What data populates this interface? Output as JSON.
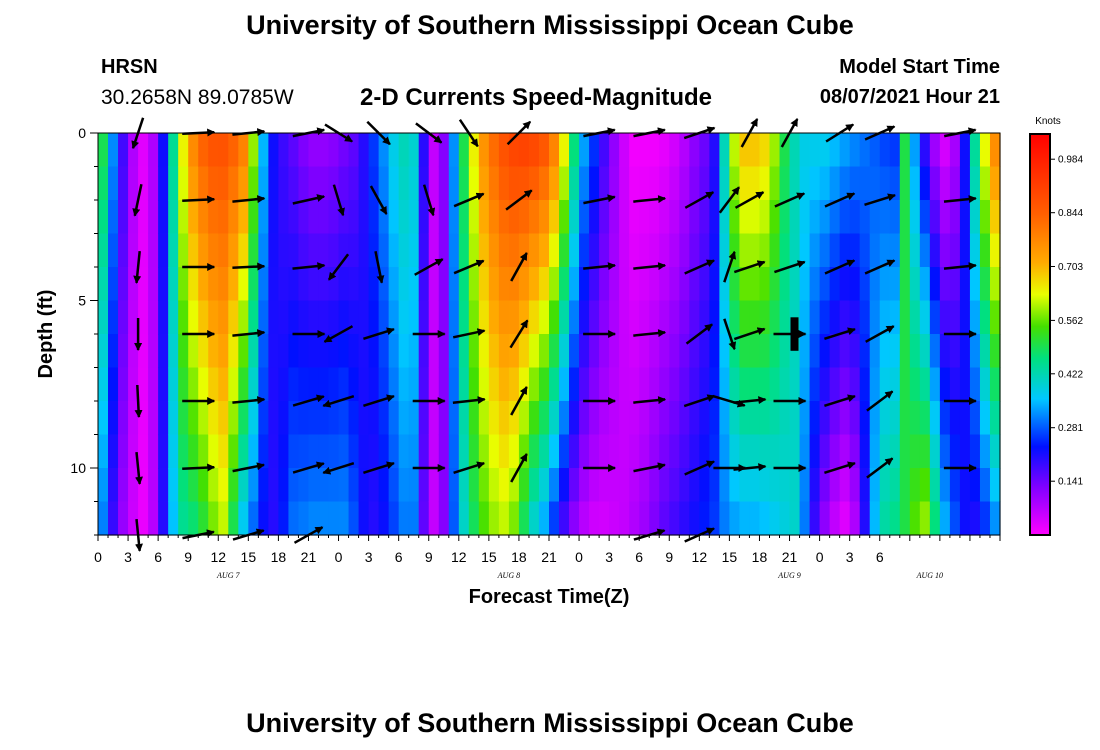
{
  "page": {
    "top_title": "University of Southern Mississippi Ocean Cube",
    "bottom_title": "University of Southern Mississippi Ocean Cube",
    "station_code": "HRSN",
    "station_coords": "30.2658N  89.0785W",
    "chart_title": "2-D Currents Speed-Magnitude",
    "model_start_label": "Model Start Time",
    "model_start_value": "08/07/2021 Hour 21"
  },
  "chart_data": {
    "type": "heatmap",
    "title": "2-D Currents Speed-Magnitude",
    "xlabel": "Forecast Time(Z)",
    "ylabel": "Depth (ft)",
    "x_hours_range": [
      0,
      90
    ],
    "y_range": [
      0,
      12
    ],
    "x_tick_labels": [
      "0",
      "3",
      "6",
      "9",
      "12",
      "15",
      "18",
      "21",
      "0",
      "3",
      "6",
      "9",
      "12",
      "15",
      "18",
      "21",
      "0",
      "3",
      "6",
      "9",
      "12",
      "15",
      "18",
      "21",
      "0",
      "3",
      "6"
    ],
    "y_tick_values": [
      0,
      5,
      10
    ],
    "y_tick_labels": [
      "0",
      "5",
      "10"
    ],
    "day_labels": [
      {
        "text": "AUG 7",
        "hour": 13
      },
      {
        "text": "AUG 8",
        "hour": 41
      },
      {
        "text": "AUG 9",
        "hour": 69
      },
      {
        "text": "AUG 10",
        "hour": 83
      }
    ],
    "colorbar": {
      "unit": "Knots",
      "min": 0.0,
      "max": 1.05,
      "labels": [
        "0.984",
        "0.844",
        "0.703",
        "0.562",
        "0.422",
        "0.281",
        "0.141"
      ]
    },
    "speed_hours": [
      0,
      1,
      2,
      3,
      4,
      5,
      6,
      7,
      8,
      9,
      10,
      11,
      12,
      13,
      14,
      15,
      16,
      17,
      18,
      19,
      20,
      21,
      22,
      23,
      24,
      25,
      26,
      27,
      28,
      29,
      30,
      31,
      32,
      33,
      34,
      35,
      36,
      37,
      38,
      39,
      40,
      41,
      42,
      43,
      44,
      45,
      46,
      47,
      48,
      49,
      50,
      51,
      52,
      53,
      54,
      55,
      56,
      57,
      58,
      59,
      60,
      61,
      62,
      63,
      64,
      65,
      66,
      67,
      68,
      69,
      70,
      71,
      72,
      73,
      74,
      75,
      76,
      77,
      78,
      79,
      80,
      81,
      82,
      83,
      84,
      85,
      86,
      87,
      88,
      89
    ],
    "speed_surface": [
      0.5,
      0.32,
      0.18,
      0.08,
      0.03,
      0.08,
      0.22,
      0.45,
      0.65,
      0.78,
      0.85,
      0.88,
      0.88,
      0.85,
      0.8,
      0.6,
      0.35,
      0.22,
      0.18,
      0.15,
      0.12,
      0.1,
      0.1,
      0.11,
      0.13,
      0.15,
      0.2,
      0.26,
      0.32,
      0.38,
      0.42,
      0.4,
      0.2,
      0.06,
      0.12,
      0.32,
      0.5,
      0.65,
      0.76,
      0.83,
      0.88,
      0.91,
      0.92,
      0.91,
      0.88,
      0.8,
      0.66,
      0.48,
      0.34,
      0.26,
      0.18,
      0.11,
      0.05,
      0.01,
      0.01,
      0.01,
      0.02,
      0.04,
      0.07,
      0.11,
      0.14,
      0.2,
      0.42,
      0.62,
      0.7,
      0.7,
      0.68,
      0.6,
      0.5,
      0.42,
      0.38,
      0.38,
      0.38,
      0.36,
      0.34,
      0.32,
      0.3,
      0.28,
      0.26,
      0.25,
      0.5,
      0.32,
      0.18,
      0.08,
      0.03,
      0.08,
      0.22,
      0.45,
      0.65,
      0.78
    ],
    "speed_bottom": [
      0.3,
      0.18,
      0.1,
      0.05,
      0.02,
      0.07,
      0.2,
      0.35,
      0.44,
      0.46,
      0.5,
      0.56,
      0.6,
      0.48,
      0.35,
      0.28,
      0.22,
      0.2,
      0.24,
      0.3,
      0.31,
      0.32,
      0.32,
      0.32,
      0.32,
      0.28,
      0.22,
      0.2,
      0.22,
      0.26,
      0.3,
      0.3,
      0.15,
      0.06,
      0.12,
      0.28,
      0.4,
      0.48,
      0.54,
      0.58,
      0.6,
      0.56,
      0.47,
      0.38,
      0.32,
      0.24,
      0.16,
      0.1,
      0.06,
      0.04,
      0.04,
      0.05,
      0.06,
      0.08,
      0.1,
      0.13,
      0.16,
      0.18,
      0.2,
      0.22,
      0.24,
      0.26,
      0.3,
      0.32,
      0.33,
      0.33,
      0.34,
      0.36,
      0.38,
      0.4,
      0.3,
      0.18,
      0.1,
      0.05,
      0.02,
      0.07,
      0.2,
      0.35,
      0.44,
      0.46,
      0.5,
      0.56,
      0.6,
      0.48,
      0.35,
      0.28,
      0.22,
      0.2,
      0.24,
      0.3
    ],
    "vector_depths": [
      0,
      2,
      4,
      6,
      8,
      10,
      12
    ],
    "vectors": [
      {
        "hour": 4,
        "dir": [
          [
            -0.3,
            0.9
          ],
          [
            -0.2,
            0.95
          ],
          [
            -0.1,
            1
          ],
          [
            0,
            1
          ],
          [
            0.05,
            1
          ],
          [
            0.1,
            1
          ],
          [
            0.1,
            1
          ]
        ]
      },
      {
        "hour": 10,
        "dir": [
          [
            1,
            -0.05
          ],
          [
            1,
            -0.05
          ],
          [
            1,
            0
          ],
          [
            1,
            0
          ],
          [
            1,
            0
          ],
          [
            1,
            -0.05
          ],
          [
            1,
            -0.2
          ]
        ]
      },
      {
        "hour": 15,
        "dir": [
          [
            1,
            -0.1
          ],
          [
            1,
            -0.1
          ],
          [
            1,
            -0.05
          ],
          [
            1,
            -0.1
          ],
          [
            1,
            -0.1
          ],
          [
            1,
            -0.2
          ],
          [
            1,
            -0.3
          ]
        ]
      },
      {
        "hour": 21,
        "dir": [
          [
            1,
            -0.2
          ],
          [
            0.9,
            -0.2
          ],
          [
            1,
            -0.1
          ],
          [
            1,
            0
          ],
          [
            1,
            -0.3
          ],
          [
            1,
            -0.3
          ],
          [
            0.9,
            -0.5
          ]
        ]
      },
      {
        "hour": 24,
        "dir": [
          [
            0.8,
            0.5
          ],
          [
            0.3,
            1
          ],
          [
            -0.6,
            0.8
          ],
          [
            -0.9,
            0.5
          ],
          [
            -0.95,
            0.3
          ],
          [
            -0.95,
            0.3
          ],
          [
            0,
            0
          ]
        ]
      },
      {
        "hour": 28,
        "dir": [
          [
            0.7,
            0.7
          ],
          [
            0.5,
            0.9
          ],
          [
            0.2,
            1
          ],
          [
            0.95,
            -0.3
          ],
          [
            0.95,
            -0.3
          ],
          [
            0.95,
            -0.3
          ],
          [
            0,
            0
          ]
        ]
      },
      {
        "hour": 33,
        "dir": [
          [
            0.8,
            0.6
          ],
          [
            0.3,
            1
          ],
          [
            0.9,
            -0.5
          ],
          [
            1,
            0
          ],
          [
            1,
            0
          ],
          [
            1,
            0
          ],
          [
            0,
            0
          ]
        ]
      },
      {
        "hour": 37,
        "dir": [
          [
            0.6,
            0.9
          ],
          [
            0.95,
            -0.4
          ],
          [
            0.95,
            -0.4
          ],
          [
            0.95,
            -0.2
          ],
          [
            0.95,
            -0.1
          ],
          [
            0.95,
            -0.3
          ],
          [
            0,
            0
          ]
        ]
      },
      {
        "hour": 42,
        "dir": [
          [
            0.7,
            -0.7
          ],
          [
            0.8,
            -0.6
          ],
          [
            0.5,
            -0.9
          ],
          [
            0.5,
            -0.8
          ],
          [
            0.5,
            -0.9
          ],
          [
            0.5,
            -0.9
          ],
          [
            0,
            0
          ]
        ]
      },
      {
        "hour": 50,
        "dir": [
          [
            1,
            -0.2
          ],
          [
            1,
            -0.2
          ],
          [
            1,
            -0.1
          ],
          [
            1,
            0
          ],
          [
            1,
            0
          ],
          [
            1,
            0
          ],
          [
            0,
            0
          ]
        ]
      },
      {
        "hour": 55,
        "dir": [
          [
            1,
            -0.2
          ],
          [
            1,
            -0.1
          ],
          [
            1,
            -0.1
          ],
          [
            1,
            -0.1
          ],
          [
            1,
            -0.1
          ],
          [
            1,
            -0.2
          ],
          [
            1,
            -0.3
          ]
        ]
      },
      {
        "hour": 60,
        "dir": [
          [
            0.9,
            -0.3
          ],
          [
            0.9,
            -0.5
          ],
          [
            0.9,
            -0.4
          ],
          [
            0.8,
            -0.6
          ],
          [
            0.9,
            -0.3
          ],
          [
            0.9,
            -0.4
          ],
          [
            0.9,
            -0.4
          ]
        ]
      },
      {
        "hour": 63,
        "dir": [
          [
            0,
            0
          ],
          [
            0.6,
            -0.8
          ],
          [
            0.3,
            -0.9
          ],
          [
            0.3,
            0.9
          ],
          [
            1,
            0.3
          ],
          [
            1,
            0
          ],
          [
            0,
            0
          ]
        ]
      },
      {
        "hour": 65,
        "dir": [
          [
            0.5,
            -0.9
          ],
          [
            0.9,
            -0.5
          ],
          [
            0.9,
            -0.3
          ],
          [
            0.9,
            -0.3
          ],
          [
            1,
            -0.1
          ],
          [
            1,
            -0.1
          ],
          [
            0,
            0
          ]
        ]
      },
      {
        "hour": 69,
        "dir": [
          [
            0.5,
            -0.9
          ],
          [
            0.9,
            -0.4
          ],
          [
            0.9,
            -0.3
          ],
          [
            1,
            0
          ],
          [
            1,
            0
          ],
          [
            1,
            0
          ],
          [
            0,
            0
          ]
        ]
      },
      {
        "hour": 74,
        "dir": [
          [
            0.8,
            -0.5
          ],
          [
            0.9,
            -0.4
          ],
          [
            0.9,
            -0.4
          ],
          [
            0.95,
            -0.3
          ],
          [
            0.95,
            -0.3
          ],
          [
            0.95,
            -0.3
          ],
          [
            0,
            0
          ]
        ]
      },
      {
        "hour": 78,
        "dir": [
          [
            0.9,
            -0.4
          ],
          [
            0.95,
            -0.3
          ],
          [
            0.9,
            -0.4
          ],
          [
            0.9,
            -0.5
          ],
          [
            0.8,
            -0.6
          ],
          [
            0.8,
            -0.6
          ],
          [
            0,
            0
          ]
        ]
      },
      {
        "hour": 86,
        "dir": [
          [
            1,
            -0.2
          ],
          [
            1,
            -0.1
          ],
          [
            1,
            -0.1
          ],
          [
            1,
            0
          ],
          [
            1,
            0
          ],
          [
            1,
            0
          ],
          [
            0,
            0
          ]
        ]
      }
    ],
    "current_marker": {
      "hour": 69.5,
      "depth_from": 5.5,
      "depth_to": 6.5
    }
  }
}
